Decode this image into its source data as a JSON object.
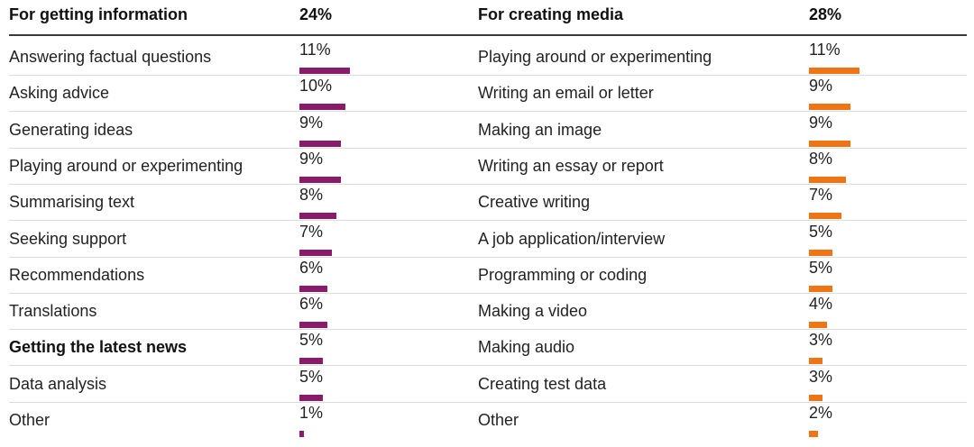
{
  "chart_data": [
    {
      "type": "bar",
      "title": "For getting information",
      "total": "24%",
      "color": "#8a1a6a",
      "categories": [
        "Answering factual questions",
        "Asking advice",
        "Generating ideas",
        "Playing around or experimenting",
        "Summarising text",
        "Seeking support",
        "Recommendations",
        "Translations",
        "Getting the latest news",
        "Data analysis",
        "Other"
      ],
      "values": [
        11,
        10,
        9,
        9,
        8,
        7,
        6,
        6,
        5,
        5,
        1
      ],
      "labels": [
        "11%",
        "10%",
        "9%",
        "9%",
        "8%",
        "7%",
        "6%",
        "6%",
        "5%",
        "5%",
        "1%"
      ],
      "bold": [
        false,
        false,
        false,
        false,
        false,
        false,
        false,
        false,
        true,
        false,
        false
      ],
      "unit": "%"
    },
    {
      "type": "bar",
      "title": "For creating media",
      "total": "28%",
      "color": "#f07414",
      "categories": [
        "Playing around or experimenting",
        "Writing an email or letter",
        "Making an image",
        "Writing an essay or report",
        "Creative writing",
        "A job application/interview",
        "Programming or coding",
        "Making a video",
        "Making audio",
        "Creating test data",
        "Other"
      ],
      "values": [
        11,
        9,
        9,
        8,
        7,
        5,
        5,
        4,
        3,
        3,
        2
      ],
      "labels": [
        "11%",
        "9%",
        "9%",
        "8%",
        "7%",
        "5%",
        "5%",
        "4%",
        "3%",
        "3%",
        "2%"
      ],
      "bold": [
        false,
        false,
        false,
        false,
        false,
        false,
        false,
        false,
        false,
        false,
        false
      ],
      "unit": "%"
    }
  ]
}
